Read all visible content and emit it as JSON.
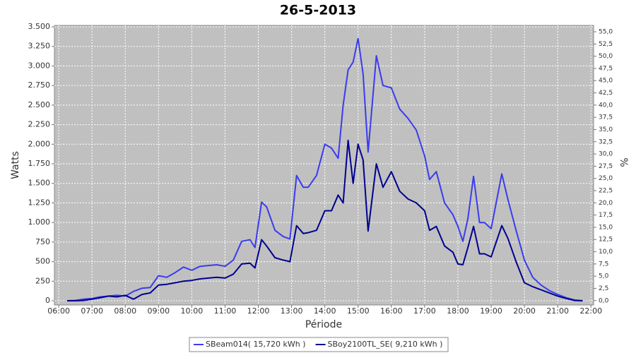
{
  "chart_data": {
    "type": "line",
    "title": "26-5-2013",
    "x_label": "Période",
    "y_label": "Watts",
    "y2_label": "%",
    "xlim": [
      5.87,
      22.08
    ],
    "ylim": [
      -54,
      3518
    ],
    "y2lim": [
      -0.9,
      56.3
    ],
    "grid": true,
    "legend": "bottom",
    "xticks": [
      {
        "value": 6,
        "label": "06:00"
      },
      {
        "value": 7,
        "label": "07:00"
      },
      {
        "value": 8,
        "label": "08:00"
      },
      {
        "value": 9,
        "label": "09:00"
      },
      {
        "value": 10,
        "label": "10:00"
      },
      {
        "value": 11,
        "label": "11:00"
      },
      {
        "value": 12,
        "label": "12:00"
      },
      {
        "value": 13,
        "label": "13:00"
      },
      {
        "value": 14,
        "label": "14:00"
      },
      {
        "value": 15,
        "label": "15:00"
      },
      {
        "value": 16,
        "label": "16:00"
      },
      {
        "value": 17,
        "label": "17:00"
      },
      {
        "value": 18,
        "label": "18:00"
      },
      {
        "value": 19,
        "label": "19:00"
      },
      {
        "value": 20,
        "label": "20:00"
      },
      {
        "value": 21,
        "label": "21:00"
      },
      {
        "value": 22,
        "label": "22:00"
      }
    ],
    "yticks": [
      0,
      250,
      500,
      750,
      {
        "value": 1000,
        "label": "1.000"
      },
      {
        "value": 1250,
        "label": "1.250"
      },
      {
        "value": 1500,
        "label": "1.500"
      },
      {
        "value": 1750,
        "label": "1.750"
      },
      {
        "value": 2000,
        "label": "2.000"
      },
      {
        "value": 2250,
        "label": "2.250"
      },
      {
        "value": 2500,
        "label": "2.500"
      },
      {
        "value": 2750,
        "label": "2.750"
      },
      {
        "value": 3000,
        "label": "3.000"
      },
      {
        "value": 3250,
        "label": "3.250"
      },
      {
        "value": 3500,
        "label": "3.500"
      }
    ],
    "y2ticks": [
      {
        "value": 0,
        "label": "0,0"
      },
      {
        "value": 2.5,
        "label": "2,5"
      },
      {
        "value": 5,
        "label": "5,0"
      },
      {
        "value": 7.5,
        "label": "7,5"
      },
      {
        "value": 10,
        "label": "10,0"
      },
      {
        "value": 12.5,
        "label": "12,5"
      },
      {
        "value": 15,
        "label": "15,0"
      },
      {
        "value": 17.5,
        "label": "17,5"
      },
      {
        "value": 20,
        "label": "20,0"
      },
      {
        "value": 22.5,
        "label": "22,5"
      },
      {
        "value": 25,
        "label": "25,0"
      },
      {
        "value": 27.5,
        "label": "27,5"
      },
      {
        "value": 30,
        "label": "30,0"
      },
      {
        "value": 32.5,
        "label": "32,5"
      },
      {
        "value": 35,
        "label": "35,0"
      },
      {
        "value": 37.5,
        "label": "37,5"
      },
      {
        "value": 40,
        "label": "40,0"
      },
      {
        "value": 42.5,
        "label": "42,5"
      },
      {
        "value": 45,
        "label": "45,0"
      },
      {
        "value": 47.5,
        "label": "47,5"
      },
      {
        "value": 50,
        "label": "50,0"
      },
      {
        "value": 52.5,
        "label": "52,5"
      },
      {
        "value": 55,
        "label": "55,0"
      }
    ],
    "x": [
      6.25,
      6.5,
      6.75,
      7.0,
      7.25,
      7.5,
      7.75,
      8.0,
      8.25,
      8.5,
      8.75,
      9.0,
      9.25,
      9.5,
      9.75,
      10.0,
      10.25,
      10.5,
      10.75,
      11.0,
      11.25,
      11.5,
      11.75,
      11.9,
      12.1,
      12.25,
      12.5,
      12.75,
      12.95,
      13.15,
      13.35,
      13.5,
      13.75,
      14.0,
      14.2,
      14.4,
      14.55,
      14.7,
      14.85,
      15.0,
      15.15,
      15.3,
      15.55,
      15.75,
      16.0,
      16.25,
      16.5,
      16.75,
      17.0,
      17.15,
      17.35,
      17.6,
      17.85,
      18.0,
      18.15,
      18.3,
      18.47,
      18.65,
      18.8,
      19.0,
      19.32,
      19.5,
      19.75,
      20.0,
      20.25,
      20.5,
      20.75,
      21.0,
      21.25,
      21.5,
      21.75
    ],
    "series": [
      {
        "name": "SBeam014( 15,720 kWh )",
        "color": "#3b3bf0",
        "values": [
          0,
          5,
          20,
          30,
          50,
          60,
          70,
          60,
          120,
          160,
          170,
          320,
          300,
          360,
          430,
          390,
          440,
          450,
          460,
          440,
          520,
          760,
          780,
          680,
          1260,
          1200,
          900,
          820,
          790,
          1600,
          1450,
          1450,
          1600,
          2000,
          1950,
          1820,
          2500,
          2950,
          3050,
          3350,
          2900,
          1900,
          3130,
          2750,
          2720,
          2450,
          2330,
          2180,
          1850,
          1550,
          1650,
          1250,
          1100,
          950,
          760,
          1050,
          1590,
          1000,
          1000,
          920,
          1620,
          1300,
          900,
          520,
          300,
          200,
          130,
          80,
          40,
          10,
          0
        ]
      },
      {
        "name": "SBoy2100TL_SE( 9,210 kWh )",
        "color": "#000090",
        "values": [
          0,
          0,
          5,
          20,
          40,
          60,
          50,
          70,
          20,
          80,
          100,
          200,
          210,
          230,
          250,
          260,
          280,
          290,
          300,
          290,
          340,
          470,
          480,
          420,
          780,
          700,
          550,
          520,
          500,
          960,
          860,
          870,
          900,
          1150,
          1150,
          1350,
          1250,
          2050,
          1500,
          2000,
          1800,
          890,
          1750,
          1450,
          1650,
          1400,
          1300,
          1250,
          1150,
          900,
          950,
          700,
          620,
          470,
          460,
          680,
          950,
          600,
          600,
          560,
          960,
          800,
          500,
          230,
          180,
          140,
          100,
          60,
          30,
          5,
          0
        ]
      }
    ]
  }
}
